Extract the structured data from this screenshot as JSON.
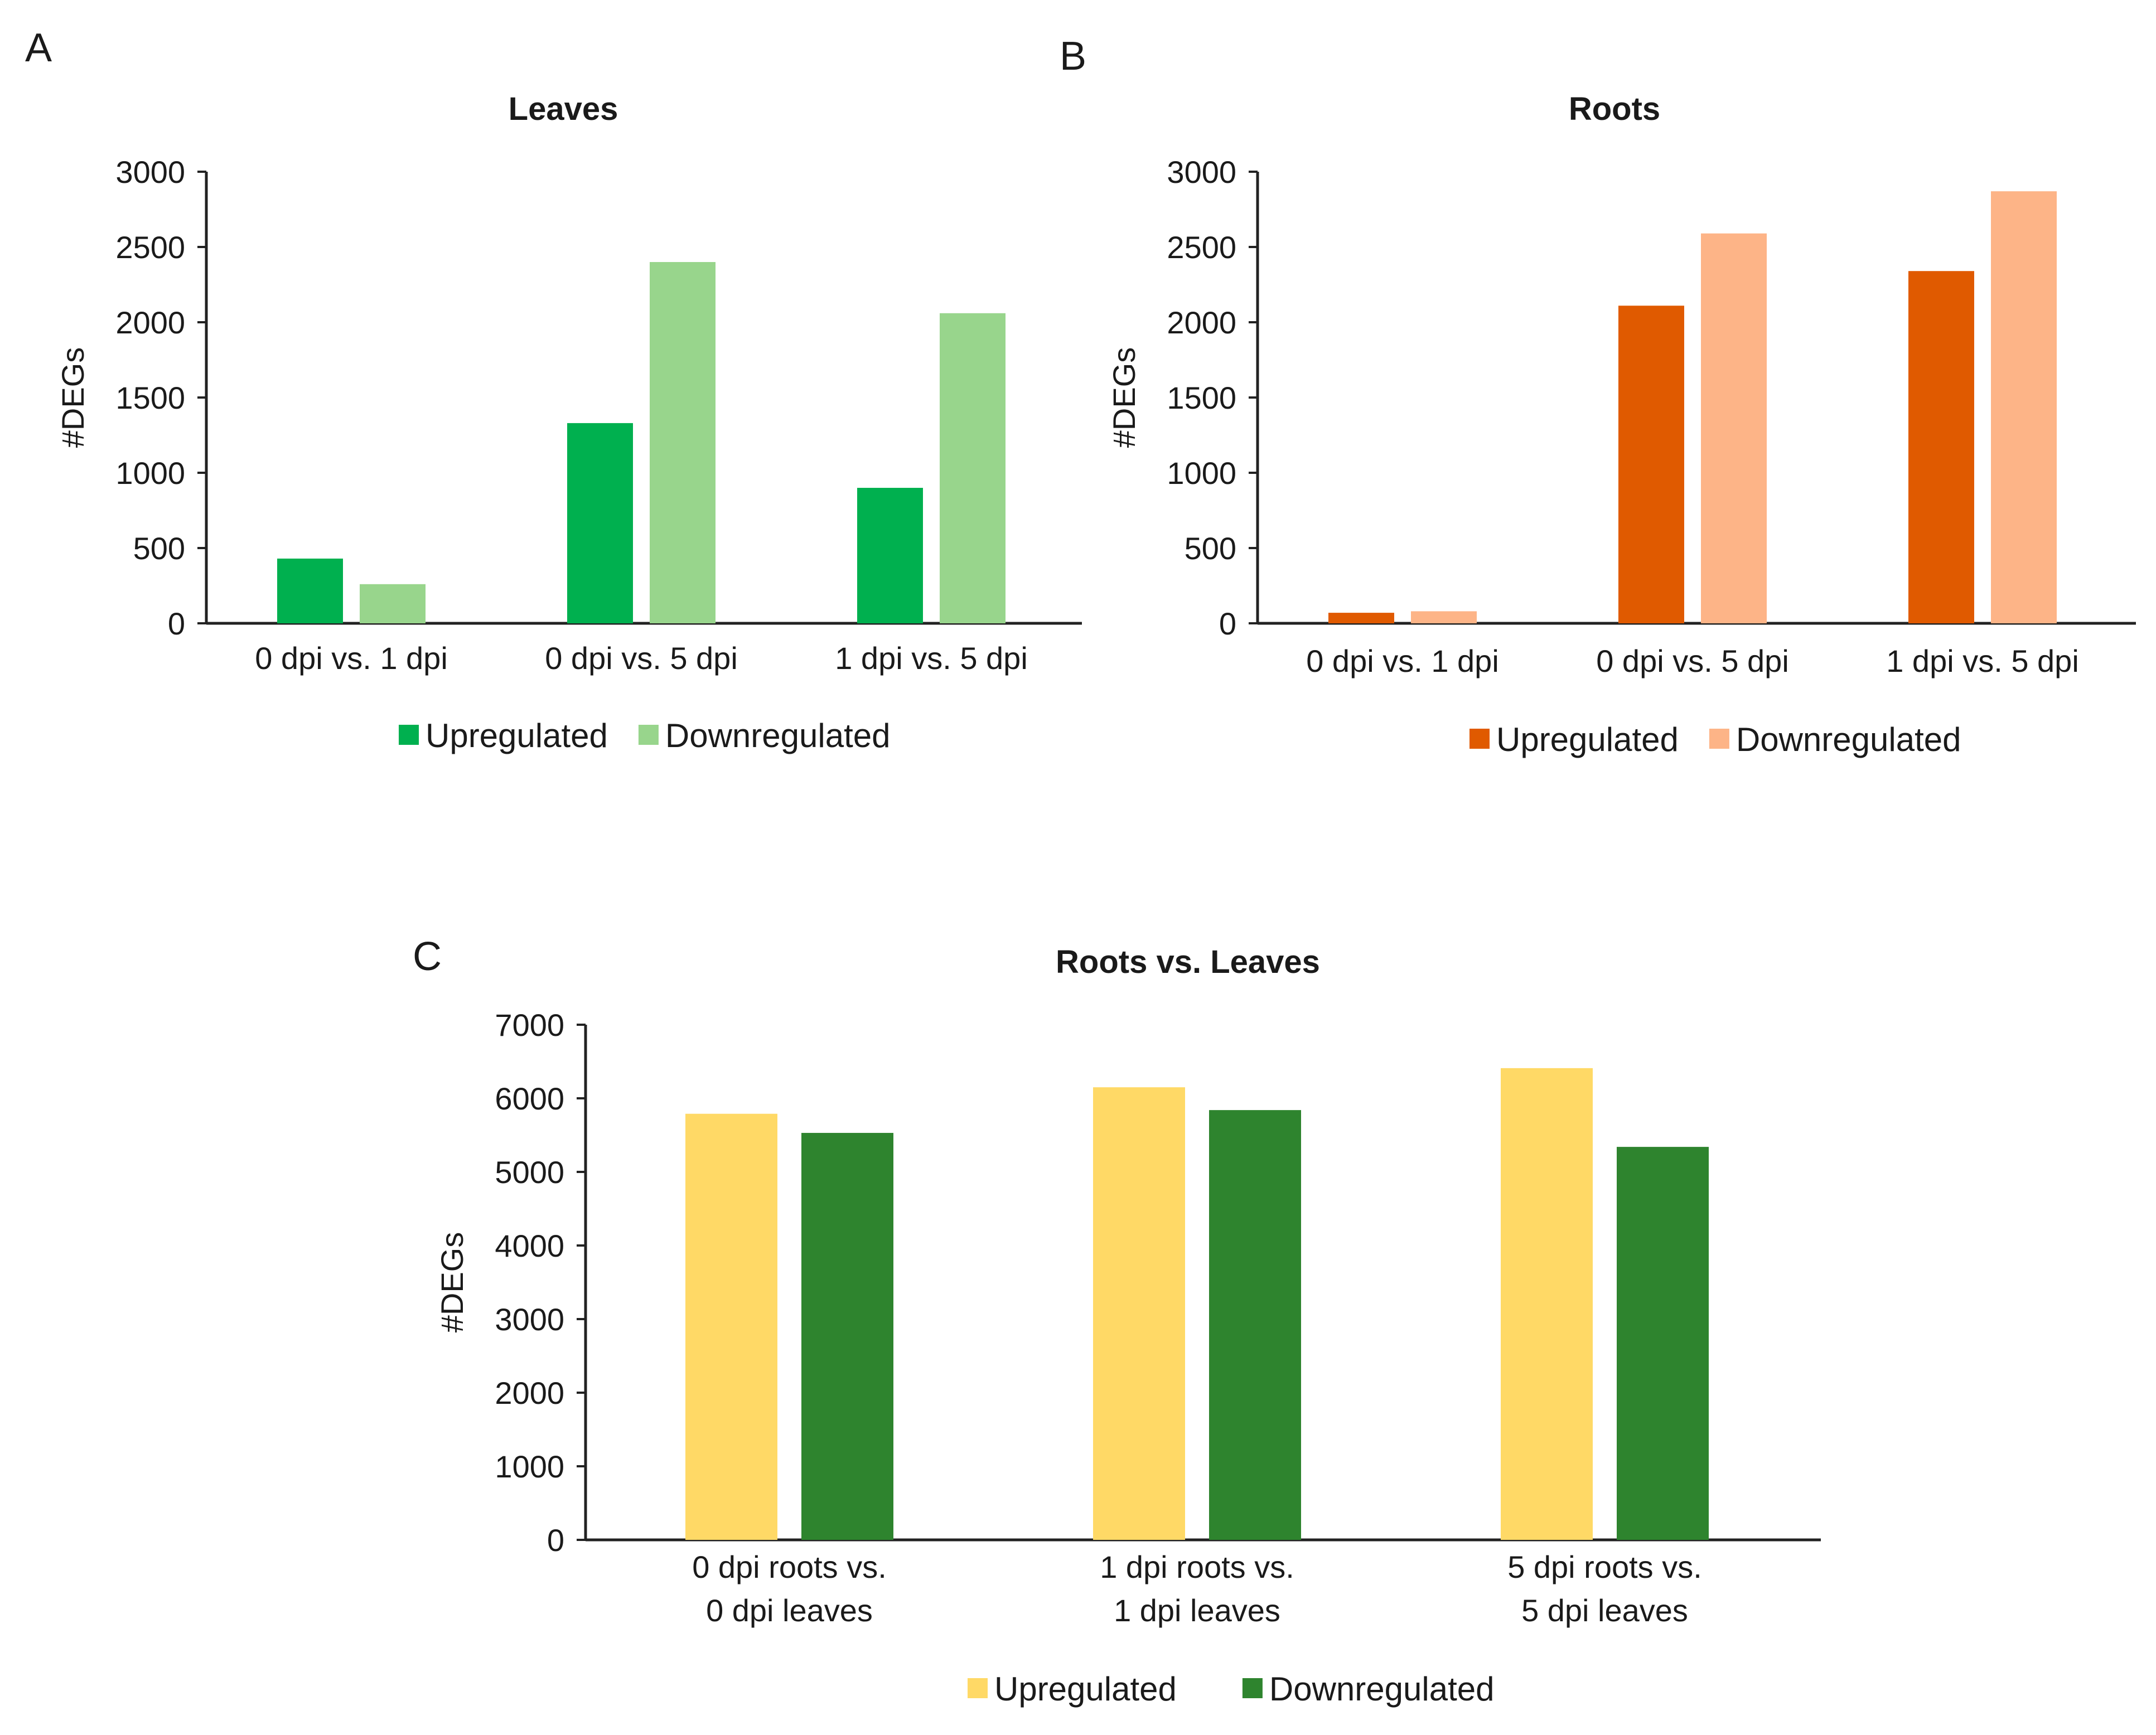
{
  "chart_data": [
    {
      "panel": "A",
      "type": "bar",
      "title": "Leaves",
      "ylabel": "#DEGs",
      "xlabel": "",
      "ylim": [
        0,
        3000
      ],
      "yticks": [
        0,
        500,
        1000,
        1500,
        2000,
        2500,
        3000
      ],
      "categories": [
        [
          "0 dpi vs. 1 dpi"
        ],
        [
          "0 dpi vs. 5 dpi"
        ],
        [
          "1 dpi vs. 5 dpi"
        ]
      ],
      "series": [
        {
          "name": "Upregulated",
          "color": "#00b04f",
          "values": [
            430,
            1330,
            900
          ]
        },
        {
          "name": "Downregulated",
          "color": "#98d58c",
          "values": [
            260,
            2400,
            2060
          ]
        }
      ],
      "legend": "bottom",
      "grid": false
    },
    {
      "panel": "B",
      "type": "bar",
      "title": "Roots",
      "ylabel": "#DEGs",
      "xlabel": "",
      "ylim": [
        0,
        3000
      ],
      "yticks": [
        0,
        500,
        1000,
        1500,
        2000,
        2500,
        3000
      ],
      "categories": [
        [
          "0 dpi vs. 1 dpi"
        ],
        [
          "0 dpi vs. 5 dpi"
        ],
        [
          "1 dpi vs. 5 dpi"
        ]
      ],
      "series": [
        {
          "name": "Upregulated",
          "color": "#e05a00",
          "values": [
            70,
            2110,
            2340
          ]
        },
        {
          "name": "Downregulated",
          "color": "#fdb487",
          "values": [
            80,
            2590,
            2870
          ]
        }
      ],
      "legend": "bottom",
      "grid": false
    },
    {
      "panel": "C",
      "type": "bar",
      "title": "Roots vs. Leaves",
      "ylabel": "#DEGs",
      "xlabel": "",
      "ylim": [
        0,
        7000
      ],
      "yticks": [
        0,
        1000,
        2000,
        3000,
        4000,
        5000,
        6000,
        7000
      ],
      "categories": [
        [
          "0 dpi roots vs.",
          "0 dpi leaves"
        ],
        [
          "1 dpi roots vs.",
          "1 dpi leaves"
        ],
        [
          "5 dpi roots vs.",
          "5 dpi leaves"
        ]
      ],
      "series": [
        {
          "name": "Upregulated",
          "color": "#ffd966",
          "values": [
            5790,
            6150,
            6410
          ]
        },
        {
          "name": "Downregulated",
          "color": "#2e842e",
          "values": [
            5530,
            5840,
            5340
          ]
        }
      ],
      "legend": "bottom",
      "grid": false
    }
  ]
}
